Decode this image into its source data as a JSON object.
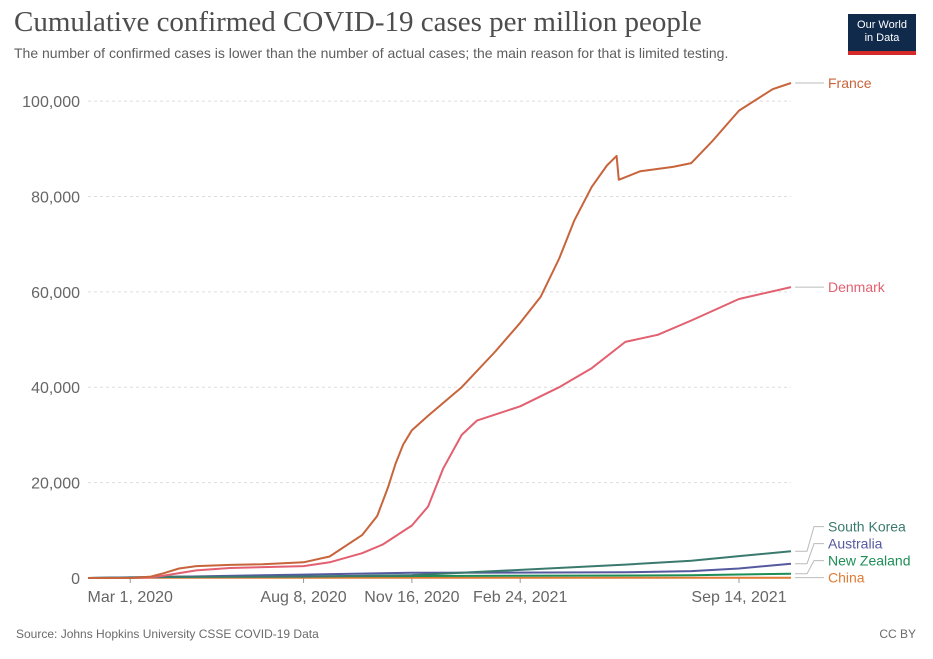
{
  "header": {
    "title": "Cumulative confirmed COVID-19 cases per million people",
    "subtitle": "The number of confirmed cases is lower than the number of actual cases; the main reason for that is limited testing."
  },
  "logo": {
    "line1": "Our World",
    "line2": "in Data"
  },
  "footer": {
    "source": "Source: Johns Hopkins University CSSE COVID-19 Data",
    "license": "CC BY"
  },
  "chart_data": {
    "type": "line",
    "ylim": [
      0,
      104000
    ],
    "grid": true,
    "legend_placement": "right, labels at line ends",
    "y_ticks": [
      {
        "value": 0,
        "label": "0"
      },
      {
        "value": 20000,
        "label": "20,000"
      },
      {
        "value": 40000,
        "label": "40,000"
      },
      {
        "value": 60000,
        "label": "60,000"
      },
      {
        "value": 80000,
        "label": "80,000"
      },
      {
        "value": 100000,
        "label": "100,000"
      }
    ],
    "x_start": "2020-01-22",
    "x_end": "2021-11-01",
    "x_ticks": [
      {
        "date": "2020-03-01",
        "label": "Mar 1, 2020"
      },
      {
        "date": "2020-08-08",
        "label": "Aug 8, 2020"
      },
      {
        "date": "2020-11-16",
        "label": "Nov 16, 2020"
      },
      {
        "date": "2021-02-24",
        "label": "Feb 24, 2021"
      },
      {
        "date": "2021-09-14",
        "label": "Sep 14, 2021"
      }
    ],
    "series": [
      {
        "name": "France",
        "color": "#c8643b",
        "points": [
          [
            "2020-01-22",
            0
          ],
          [
            "2020-03-01",
            2
          ],
          [
            "2020-03-20",
            300
          ],
          [
            "2020-04-01",
            1000
          ],
          [
            "2020-04-15",
            2000
          ],
          [
            "2020-05-01",
            2500
          ],
          [
            "2020-06-01",
            2750
          ],
          [
            "2020-07-01",
            2900
          ],
          [
            "2020-08-08",
            3300
          ],
          [
            "2020-09-01",
            4500
          ],
          [
            "2020-10-01",
            9000
          ],
          [
            "2020-10-15",
            13000
          ],
          [
            "2020-10-25",
            19000
          ],
          [
            "2020-11-01",
            24000
          ],
          [
            "2020-11-08",
            28000
          ],
          [
            "2020-11-16",
            31000
          ],
          [
            "2020-12-01",
            34000
          ],
          [
            "2021-01-01",
            40000
          ],
          [
            "2021-02-01",
            47500
          ],
          [
            "2021-02-24",
            53500
          ],
          [
            "2021-03-15",
            59000
          ],
          [
            "2021-04-01",
            67000
          ],
          [
            "2021-04-15",
            75000
          ],
          [
            "2021-05-01",
            82000
          ],
          [
            "2021-05-15",
            86500
          ],
          [
            "2021-05-24",
            88500
          ],
          [
            "2021-05-26",
            83500
          ],
          [
            "2021-06-15",
            85300
          ],
          [
            "2021-07-15",
            86200
          ],
          [
            "2021-08-01",
            87000
          ],
          [
            "2021-08-20",
            91500
          ],
          [
            "2021-09-14",
            98000
          ],
          [
            "2021-10-15",
            102500
          ],
          [
            "2021-11-01",
            103800
          ]
        ]
      },
      {
        "name": "Denmark",
        "color": "#e26070",
        "points": [
          [
            "2020-01-22",
            0
          ],
          [
            "2020-03-01",
            1
          ],
          [
            "2020-03-20",
            100
          ],
          [
            "2020-04-01",
            500
          ],
          [
            "2020-05-01",
            1600
          ],
          [
            "2020-06-01",
            2100
          ],
          [
            "2020-08-08",
            2500
          ],
          [
            "2020-09-01",
            3300
          ],
          [
            "2020-10-01",
            5200
          ],
          [
            "2020-10-20",
            7000
          ],
          [
            "2020-11-16",
            11000
          ],
          [
            "2020-12-01",
            15000
          ],
          [
            "2020-12-15",
            23000
          ],
          [
            "2021-01-01",
            30000
          ],
          [
            "2021-01-15",
            33000
          ],
          [
            "2021-02-24",
            36000
          ],
          [
            "2021-04-01",
            40000
          ],
          [
            "2021-05-01",
            44000
          ],
          [
            "2021-06-01",
            49500
          ],
          [
            "2021-07-01",
            51000
          ],
          [
            "2021-08-01",
            54000
          ],
          [
            "2021-09-14",
            58500
          ],
          [
            "2021-11-01",
            61000
          ]
        ]
      },
      {
        "name": "South Korea",
        "color": "#3a7a6e",
        "points": [
          [
            "2020-01-22",
            0
          ],
          [
            "2020-03-01",
            70
          ],
          [
            "2020-04-01",
            200
          ],
          [
            "2020-08-08",
            300
          ],
          [
            "2020-11-16",
            600
          ],
          [
            "2021-02-24",
            1700
          ],
          [
            "2021-06-01",
            2800
          ],
          [
            "2021-08-01",
            3600
          ],
          [
            "2021-09-14",
            4600
          ],
          [
            "2021-11-01",
            5600
          ]
        ]
      },
      {
        "name": "Australia",
        "color": "#55599e",
        "points": [
          [
            "2020-01-22",
            0
          ],
          [
            "2020-04-01",
            200
          ],
          [
            "2020-08-01",
            700
          ],
          [
            "2020-11-16",
            1100
          ],
          [
            "2021-06-01",
            1200
          ],
          [
            "2021-08-01",
            1450
          ],
          [
            "2021-09-14",
            2000
          ],
          [
            "2021-11-01",
            3000
          ]
        ]
      },
      {
        "name": "New Zealand",
        "color": "#1d8e56",
        "points": [
          [
            "2020-01-22",
            0
          ],
          [
            "2020-04-15",
            290
          ],
          [
            "2021-08-01",
            560
          ],
          [
            "2021-11-01",
            900
          ]
        ]
      },
      {
        "name": "China",
        "color": "#e07b35",
        "points": [
          [
            "2020-01-22",
            0
          ],
          [
            "2020-03-01",
            55
          ],
          [
            "2021-11-01",
            70
          ]
        ]
      }
    ]
  }
}
